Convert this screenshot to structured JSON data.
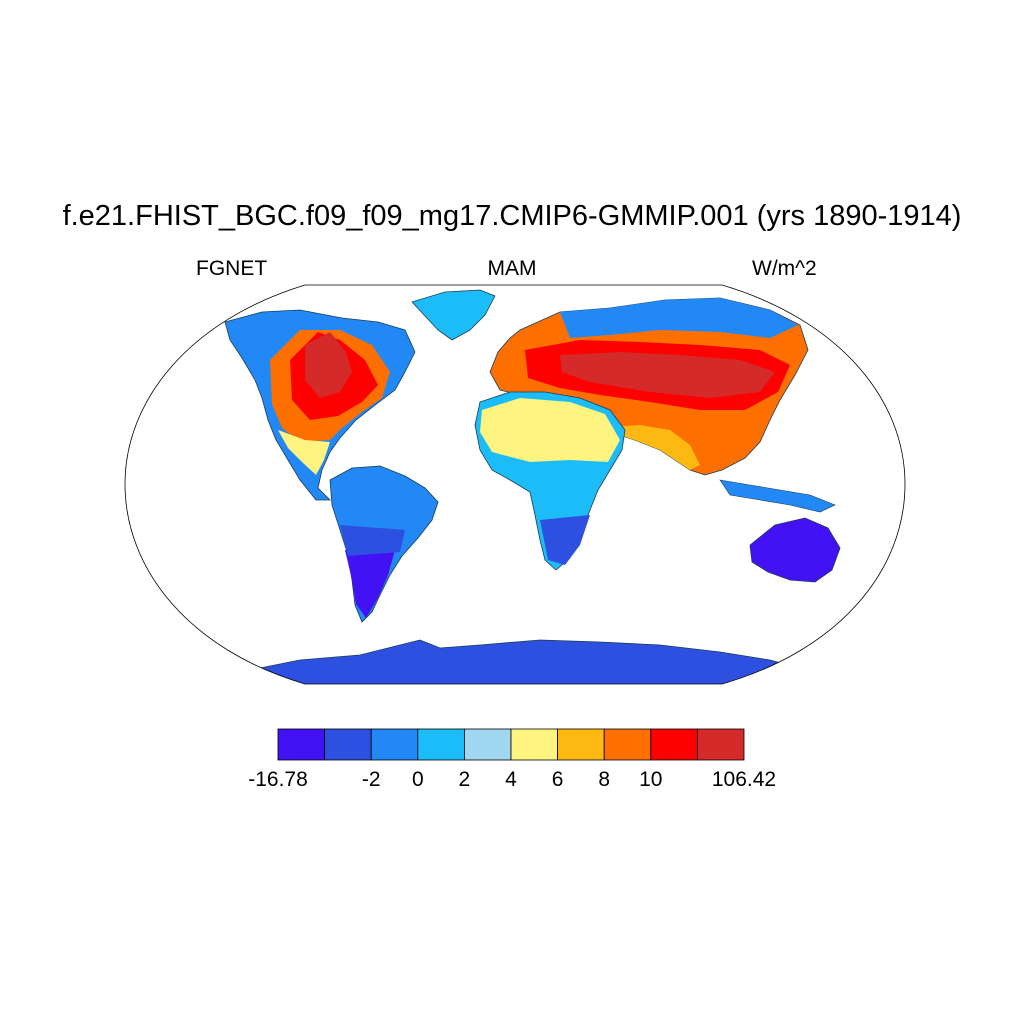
{
  "title": "f.e21.FHIST_BGC.f09_f09_mg17.CMIP6-GMMIP.001 (yrs 1890-1914)",
  "left_label": "FGNET",
  "center_label": "MAM",
  "right_label": "W/m^2",
  "colorbar": {
    "colors": [
      "#4212f5",
      "#2e50e0",
      "#2188f5",
      "#1bbcf8",
      "#a1d6f0",
      "#fff47f",
      "#fdb911",
      "#fd7000",
      "#fd0000",
      "#d52a2a"
    ],
    "labels": [
      "-16.78",
      "-2",
      "0",
      "2",
      "4",
      "6",
      "8",
      "10",
      "106.42"
    ],
    "label_edges": [
      0,
      2,
      3,
      4,
      5,
      6,
      7,
      8,
      10
    ]
  }
}
